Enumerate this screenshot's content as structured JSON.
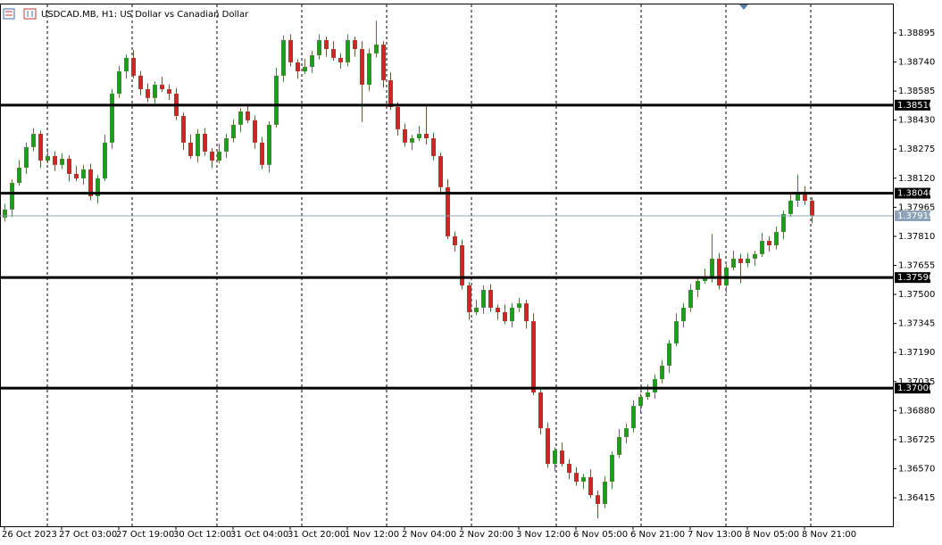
{
  "chart_data": {
    "type": "candlestick",
    "title": "USDCAD.MB, H1:  US Dollar vs Canadian Dollar",
    "up_color": "#1f9b1f",
    "down_color": "#d0262a",
    "x": [
      "26 Oct 2023",
      null,
      null,
      null,
      null,
      null,
      null,
      null,
      "27 Oct 03:00",
      null,
      null,
      null,
      null,
      null,
      null,
      null,
      "27 Oct 19:00",
      null,
      null,
      null,
      null,
      null,
      null,
      null,
      "30 Oct 12:00",
      null,
      null,
      null,
      null,
      null,
      null,
      null,
      "31 Oct 04:00",
      null,
      null,
      null,
      null,
      null,
      null,
      null,
      "31 Oct 20:00",
      null,
      null,
      null,
      null,
      null,
      null,
      null,
      "1 Nov 12:00",
      null,
      null,
      null,
      null,
      null,
      null,
      null,
      "2 Nov 04:00",
      null,
      null,
      null,
      null,
      null,
      null,
      null,
      "2 Nov 20:00",
      null,
      null,
      null,
      null,
      null,
      null,
      null,
      "3 Nov 12:00",
      null,
      null,
      null,
      null,
      null,
      null,
      null,
      "6 Nov 05:00",
      null,
      null,
      null,
      null,
      null,
      null,
      null,
      "6 Nov 21:00",
      null,
      null,
      null,
      null,
      null,
      null,
      null,
      "7 Nov 13:00",
      null,
      null,
      null,
      null,
      null,
      null,
      null,
      "8 Nov 05:00",
      null,
      null,
      null,
      null,
      null,
      null,
      null,
      "8 Nov 21:00",
      null
    ],
    "open": [
      1.3791,
      1.37953,
      1.38095,
      1.38176,
      1.38286,
      1.38357,
      1.38214,
      1.38238,
      1.38191,
      1.38224,
      1.38143,
      1.38119,
      1.38167,
      1.38024,
      1.38119,
      1.3831,
      1.38571,
      1.3869,
      1.38762,
      1.38667,
      1.38595,
      1.38548,
      1.38619,
      1.38595,
      1.38571,
      1.38452,
      1.3831,
      1.38238,
      1.38357,
      1.38262,
      1.38214,
      1.38262,
      1.38333,
      1.38405,
      1.38476,
      1.38429,
      1.3831,
      1.38191,
      1.38405,
      1.38667,
      1.38857,
      1.38738,
      1.3869,
      1.38714,
      1.38776,
      1.38857,
      1.38809,
      1.38762,
      1.38738,
      1.38857,
      1.38809,
      1.38619,
      1.38786,
      1.38833,
      1.38643,
      1.385,
      1.38381,
      1.3831,
      1.38333,
      1.38357,
      1.38333,
      1.38238,
      1.38072,
      1.3781,
      1.37762,
      1.37548,
      1.37405,
      1.37429,
      1.37524,
      1.37429,
      1.37405,
      1.37357,
      1.37429,
      1.37452,
      1.37357,
      1.36977,
      1.36786,
      1.36596,
      1.36667,
      1.36596,
      1.36548,
      1.36501,
      1.36525,
      1.36429,
      1.36382,
      1.36501,
      1.36644,
      1.36739,
      1.36786,
      1.36905,
      1.36953,
      1.36977,
      1.37048,
      1.3712,
      1.37239,
      1.37357,
      1.37429,
      1.37524,
      1.37572,
      1.37596,
      1.37691,
      1.37548,
      1.37643,
      1.37691,
      1.37667,
      1.37691,
      1.37715,
      1.37786,
      1.37762,
      1.37833,
      1.37929,
      1.38,
      1.38048,
      1.38
    ],
    "high": [
      1.37983,
      1.38113,
      1.38218,
      1.38311,
      1.38387,
      1.38375,
      1.3828,
      1.38263,
      1.38254,
      1.38242,
      1.38185,
      1.38192,
      1.38197,
      1.38137,
      1.38352,
      1.38596,
      1.3872,
      1.3878,
      1.38804,
      1.38692,
      1.38625,
      1.38637,
      1.38661,
      1.3862,
      1.38601,
      1.3847,
      1.38352,
      1.38382,
      1.38387,
      1.3828,
      1.38304,
      1.38358,
      1.38435,
      1.38494,
      1.38518,
      1.38454,
      1.3834,
      1.38423,
      1.38709,
      1.38882,
      1.38887,
      1.38756,
      1.38756,
      1.38801,
      1.38887,
      1.38875,
      1.38851,
      1.38787,
      1.38887,
      1.38875,
      1.38851,
      1.38811,
      1.3896,
      1.38851,
      1.38685,
      1.38525,
      1.38411,
      1.38351,
      1.38399,
      1.3851,
      1.38363,
      1.38256,
      1.38114,
      1.37835,
      1.37792,
      1.37566,
      1.37471,
      1.37549,
      1.37554,
      1.37447,
      1.37447,
      1.37454,
      1.37482,
      1.3747,
      1.37399,
      1.37002,
      1.36816,
      1.36685,
      1.36709,
      1.36621,
      1.36578,
      1.36543,
      1.36567,
      1.36454,
      1.36531,
      1.36662,
      1.36781,
      1.36811,
      1.36935,
      1.36971,
      1.37019,
      1.37073,
      1.3715,
      1.37257,
      1.37399,
      1.37454,
      1.37554,
      1.3759,
      1.37638,
      1.37823,
      1.37721,
      1.37661,
      1.37733,
      1.37716,
      1.37721,
      1.37733,
      1.37828,
      1.37811,
      1.37863,
      1.37947,
      1.38042,
      1.3814,
      1.38078,
      1.38018
    ],
    "low": [
      1.37888,
      1.37913,
      1.3808,
      1.38143,
      1.38264,
      1.38174,
      1.38199,
      1.38158,
      1.38169,
      1.38103,
      1.38104,
      1.38086,
      1.38002,
      1.37984,
      1.38104,
      1.38277,
      1.38549,
      1.3865,
      1.38652,
      1.38562,
      1.38526,
      1.38508,
      1.3858,
      1.38538,
      1.3843,
      1.3827,
      1.38223,
      1.38205,
      1.3824,
      1.38174,
      1.38199,
      1.38229,
      1.38311,
      1.38365,
      1.38414,
      1.38277,
      1.38169,
      1.38151,
      1.3839,
      1.38634,
      1.38716,
      1.3865,
      1.38675,
      1.38681,
      1.38754,
      1.38769,
      1.38747,
      1.38705,
      1.38716,
      1.38769,
      1.3842,
      1.38586,
      1.38764,
      1.38603,
      1.38485,
      1.38348,
      1.38288,
      1.3827,
      1.38318,
      1.383,
      1.38216,
      1.38032,
      1.37795,
      1.37729,
      1.37526,
      1.37365,
      1.3739,
      1.37396,
      1.37407,
      1.37365,
      1.37342,
      1.37324,
      1.37407,
      1.37317,
      1.36962,
      1.36753,
      1.36574,
      1.36556,
      1.36581,
      1.36515,
      1.36479,
      1.36461,
      1.36414,
      1.36305,
      1.3636,
      1.36461,
      1.36629,
      1.36706,
      1.36764,
      1.36865,
      1.36938,
      1.36944,
      1.37026,
      1.3708,
      1.37224,
      1.37324,
      1.37407,
      1.37484,
      1.37557,
      1.37563,
      1.37526,
      1.37508,
      1.37628,
      1.3756,
      1.37645,
      1.37651,
      1.377,
      1.37729,
      1.3774,
      1.37793,
      1.37914,
      1.37967,
      1.37978,
      1.37879
    ],
    "close": [
      1.37953,
      1.38095,
      1.38176,
      1.38286,
      1.38357,
      1.38214,
      1.38238,
      1.38191,
      1.38224,
      1.38143,
      1.38119,
      1.38167,
      1.38024,
      1.38119,
      1.3831,
      1.38571,
      1.3869,
      1.38762,
      1.38667,
      1.38595,
      1.38548,
      1.38619,
      1.38595,
      1.38571,
      1.38452,
      1.3831,
      1.38238,
      1.38357,
      1.38262,
      1.38214,
      1.38262,
      1.38333,
      1.38405,
      1.38476,
      1.38429,
      1.3831,
      1.38191,
      1.38405,
      1.38667,
      1.38857,
      1.38738,
      1.3869,
      1.38714,
      1.38776,
      1.38857,
      1.38809,
      1.38762,
      1.38738,
      1.38857,
      1.38809,
      1.38619,
      1.38786,
      1.38833,
      1.38643,
      1.385,
      1.38381,
      1.3831,
      1.38333,
      1.38357,
      1.38333,
      1.38238,
      1.38072,
      1.3781,
      1.37762,
      1.37548,
      1.37405,
      1.37429,
      1.37524,
      1.37429,
      1.37405,
      1.37357,
      1.37429,
      1.37452,
      1.37357,
      1.36977,
      1.36786,
      1.36596,
      1.36667,
      1.36596,
      1.36548,
      1.36501,
      1.36525,
      1.36429,
      1.36382,
      1.36501,
      1.36644,
      1.36739,
      1.36786,
      1.36905,
      1.36953,
      1.36977,
      1.37048,
      1.3712,
      1.37239,
      1.37357,
      1.37429,
      1.37524,
      1.37572,
      1.37596,
      1.37691,
      1.37548,
      1.37643,
      1.37691,
      1.37667,
      1.37691,
      1.37715,
      1.37786,
      1.37762,
      1.37833,
      1.37929,
      1.38,
      1.38048,
      1.38,
      1.37919
    ],
    "ylim": [
      1.36263,
      1.39047
    ],
    "yticks": [
      1.38895,
      {
        "value": 1.3874,
        "label": "1.38740"
      },
      1.38585,
      {
        "value": 1.3843,
        "label": "1.38430"
      },
      1.38275,
      {
        "value": 1.3812,
        "label": "1.38120"
      },
      1.37965,
      {
        "value": 1.3781,
        "label": "1.37810"
      },
      1.37655,
      {
        "value": 1.375,
        "label": "1.37500"
      },
      1.37345,
      {
        "value": 1.3719,
        "label": "1.37190"
      },
      1.37035,
      {
        "value": 1.3688,
        "label": "1.36880"
      },
      1.36725,
      {
        "value": 1.3657,
        "label": "1.36570"
      },
      1.36415
    ],
    "levels": [
      {
        "value": 1.3851,
        "label": "1.38510"
      },
      {
        "value": 1.3804,
        "label": "1.38040"
      },
      {
        "value": 1.3759,
        "label": "1.37590"
      },
      {
        "value": 1.37,
        "label": "1.37000"
      }
    ],
    "current_price": {
      "value": 1.37919,
      "label": "1.37919"
    }
  }
}
